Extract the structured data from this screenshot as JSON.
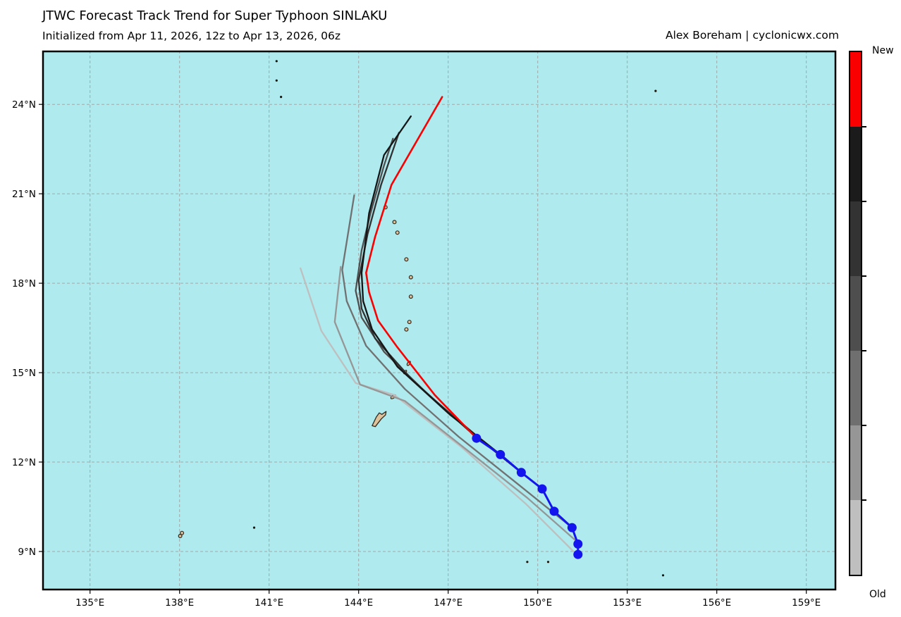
{
  "header": {
    "title": "JTWC Forecast Track Trend for Super Typhoon SINLAKU",
    "subtitle": "Initialized from Apr 11, 2026, 12z to Apr 13, 2026, 06z",
    "attribution": "Alex Boreham | cyclonicwx.com"
  },
  "chart_data": {
    "type": "line",
    "title": "JTWC Forecast Track Trend for Super Typhoon SINLAKU",
    "subtitle": "Initialized from Apr 11, 2026, 12z to Apr 13, 2026, 06z",
    "grid": true,
    "ocean_color": "#aeeaee",
    "land_color": "#dec29c",
    "land_edge_color": "#33291c",
    "grid_color": "#9f9f9f",
    "frame_color": "#000000",
    "extent": {
      "lon_min": 133.4,
      "lon_max": 160.0,
      "lat_min": 7.7,
      "lat_max": 25.8
    },
    "lon_ticks": [
      {
        "value": 135,
        "label": "135°E"
      },
      {
        "value": 138,
        "label": "138°E"
      },
      {
        "value": 141,
        "label": "141°E"
      },
      {
        "value": 144,
        "label": "144°E"
      },
      {
        "value": 147,
        "label": "147°E"
      },
      {
        "value": 150,
        "label": "150°E"
      },
      {
        "value": 153,
        "label": "153°E"
      },
      {
        "value": 156,
        "label": "156°E"
      },
      {
        "value": 159,
        "label": "159°E"
      }
    ],
    "lat_ticks": [
      {
        "value": 24,
        "label": "24°N"
      },
      {
        "value": 21,
        "label": "21°N"
      },
      {
        "value": 18,
        "label": "18°N"
      },
      {
        "value": 15,
        "label": "15°N"
      },
      {
        "value": 12,
        "label": "12°N"
      },
      {
        "value": 9,
        "label": "9°N"
      }
    ],
    "colorbar": {
      "top_label": "New",
      "bottom_label": "Old",
      "segments_new_to_old": [
        "#fb0000",
        "#1b1b1b",
        "#333333",
        "#4e4e4e",
        "#6f6f6f",
        "#969696",
        "#bfbfbf"
      ]
    },
    "observed_track": {
      "name": "observed-positions",
      "color": "#1414ee",
      "points_lat_lon": [
        [
          12.8,
          147.95
        ],
        [
          12.25,
          148.75
        ],
        [
          11.65,
          149.45
        ],
        [
          11.1,
          150.15
        ],
        [
          10.35,
          150.55
        ],
        [
          9.8,
          151.15
        ],
        [
          9.25,
          151.35
        ],
        [
          8.9,
          151.35
        ]
      ]
    },
    "forecast_tracks": [
      {
        "age_rank": 1,
        "age": "oldest",
        "color": "#bfbfbf",
        "points_lat_lon": [
          [
            9.0,
            151.2
          ],
          [
            10.6,
            149.6
          ],
          [
            12.5,
            147.45
          ],
          [
            14.25,
            145.2
          ],
          [
            14.65,
            143.9
          ],
          [
            16.4,
            142.75
          ],
          [
            18.5,
            142.05
          ]
        ]
      },
      {
        "age_rank": 2,
        "age": "older",
        "color": "#969696",
        "points_lat_lon": [
          [
            9.3,
            151.35
          ],
          [
            10.8,
            149.65
          ],
          [
            12.35,
            147.7
          ],
          [
            14.05,
            145.55
          ],
          [
            14.6,
            144.05
          ],
          [
            16.7,
            143.2
          ],
          [
            18.55,
            143.4
          ]
        ]
      },
      {
        "age_rank": 3,
        "age": "old",
        "color": "#717171",
        "points_lat_lon": [
          [
            9.8,
            151.15
          ],
          [
            11.25,
            149.35
          ],
          [
            12.85,
            147.35
          ],
          [
            14.45,
            145.55
          ],
          [
            15.9,
            144.25
          ],
          [
            17.4,
            143.6
          ],
          [
            18.45,
            143.45
          ],
          [
            20.95,
            143.85
          ]
        ]
      },
      {
        "age_rank": 4,
        "age": "mid",
        "color": "#4e4e4e",
        "points_lat_lon": [
          [
            11.1,
            150.15
          ],
          [
            12.5,
            148.4
          ],
          [
            14.2,
            146.4
          ],
          [
            15.7,
            144.85
          ],
          [
            16.85,
            144.1
          ],
          [
            17.75,
            143.9
          ],
          [
            19.1,
            144.1
          ],
          [
            20.35,
            144.4
          ],
          [
            21.95,
            144.85
          ],
          [
            22.85,
            145.15
          ]
        ]
      },
      {
        "age_rank": 5,
        "age": "recent",
        "color": "#313131",
        "points_lat_lon": [
          [
            11.65,
            149.45
          ],
          [
            13.05,
            147.7
          ],
          [
            14.75,
            145.8
          ],
          [
            16.15,
            144.55
          ],
          [
            17.15,
            144.1
          ],
          [
            18.1,
            144.0
          ],
          [
            19.65,
            144.3
          ],
          [
            21.3,
            144.75
          ],
          [
            23.05,
            145.35
          ]
        ]
      },
      {
        "age_rank": 6,
        "age": "newer",
        "color": "#161616",
        "points_lat_lon": [
          [
            12.25,
            148.75
          ],
          [
            13.6,
            147.05
          ],
          [
            15.2,
            145.3
          ],
          [
            16.45,
            144.45
          ],
          [
            17.4,
            144.15
          ],
          [
            18.35,
            144.1
          ],
          [
            20.35,
            144.35
          ],
          [
            22.3,
            144.85
          ],
          [
            23.6,
            145.75
          ]
        ]
      },
      {
        "age_rank": 7,
        "age": "newest",
        "color": "#fb0000",
        "points_lat_lon": [
          [
            12.8,
            147.95
          ],
          [
            14.25,
            146.55
          ],
          [
            15.85,
            145.3
          ],
          [
            16.75,
            144.65
          ],
          [
            17.7,
            144.35
          ],
          [
            18.35,
            144.25
          ],
          [
            19.55,
            144.55
          ],
          [
            21.3,
            145.1
          ],
          [
            24.25,
            146.8
          ]
        ]
      }
    ],
    "islands": {
      "dots_lat_lon": [
        [
          25.45,
          141.25
        ],
        [
          24.8,
          141.25
        ],
        [
          24.25,
          141.4
        ],
        [
          24.45,
          153.95
        ],
        [
          9.8,
          140.5
        ],
        [
          8.65,
          149.65
        ],
        [
          8.65,
          150.35
        ],
        [
          8.2,
          154.2
        ]
      ],
      "islets_lat_lon": [
        [
          20.55,
          144.9
        ],
        [
          20.05,
          145.2
        ],
        [
          19.7,
          145.3
        ],
        [
          18.8,
          145.6
        ],
        [
          18.2,
          145.75
        ],
        [
          17.55,
          145.75
        ],
        [
          16.7,
          145.7
        ],
        [
          16.45,
          145.6
        ],
        [
          9.62,
          138.08
        ],
        [
          9.52,
          138.02
        ]
      ],
      "islets_oval": [
        {
          "lat": 15.31,
          "lon": 145.68,
          "rx": 3.5,
          "ry": 1.8,
          "rot": -55
        },
        {
          "lat": 15.02,
          "lon": 145.56,
          "rx": 3.0,
          "ry": 1.5,
          "rot": -55
        },
        {
          "lat": 14.19,
          "lon": 145.16,
          "rx": 4.0,
          "ry": 2.0,
          "rot": -35
        }
      ],
      "polygon_lat_lon": [
        [
          13.7,
          144.92
        ],
        [
          13.6,
          144.78
        ],
        [
          13.65,
          144.69
        ],
        [
          13.51,
          144.59
        ],
        [
          13.32,
          144.5
        ],
        [
          13.22,
          144.45
        ],
        [
          13.19,
          144.56
        ],
        [
          13.32,
          144.66
        ],
        [
          13.45,
          144.76
        ],
        [
          13.58,
          144.9
        ]
      ]
    }
  }
}
